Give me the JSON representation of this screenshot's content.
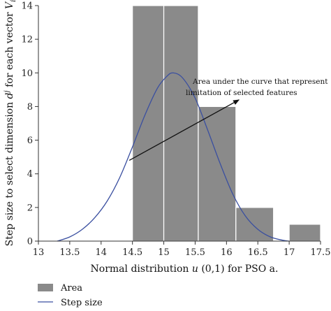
{
  "chart_data": {
    "type": "bar",
    "xlabel": "Normal distribution u (0,1) for PSO a.",
    "ylabel": "Step size to select dimension d^j for each vector V_i",
    "xlim": [
      13,
      17.5
    ],
    "ylim": [
      0,
      14
    ],
    "x_ticks": [
      "13",
      "13.5",
      "14",
      "14.5",
      "15",
      "15.5",
      "16",
      "16.5",
      "17",
      "17.5"
    ],
    "y_ticks": [
      "0",
      "2",
      "4",
      "6",
      "8",
      "10",
      "12",
      "14"
    ],
    "grid": false,
    "bars": {
      "name": "Area",
      "color": "#8a8a8a",
      "items": [
        {
          "x0": 14.5,
          "x1": 15.0,
          "value": 14
        },
        {
          "x0": 15.0,
          "x1": 15.55,
          "value": 14
        },
        {
          "x0": 15.55,
          "x1": 16.15,
          "value": 8
        },
        {
          "x0": 16.15,
          "x1": 16.75,
          "value": 2
        },
        {
          "x0": 17.0,
          "x1": 17.5,
          "value": 1
        }
      ]
    },
    "line": {
      "name": "Step size",
      "color": "#3a4fa0",
      "x": [
        13.3,
        13.5,
        13.7,
        13.9,
        14.1,
        14.3,
        14.5,
        14.7,
        14.9,
        15.05,
        15.15,
        15.3,
        15.5,
        15.7,
        15.9,
        16.1,
        16.3,
        16.5,
        16.7,
        16.9,
        17.0
      ],
      "y": [
        0.0,
        0.25,
        0.7,
        1.4,
        2.4,
        3.8,
        5.6,
        7.5,
        9.1,
        9.8,
        10.0,
        9.7,
        8.5,
        6.6,
        4.6,
        2.8,
        1.5,
        0.7,
        0.25,
        0.05,
        0.0
      ]
    },
    "annotation": {
      "lines": [
        "Area under the curve that represent",
        "limitation of selected features"
      ],
      "arrow_from": [
        14.45,
        4.8
      ],
      "arrow_to": [
        16.2,
        8.4
      ]
    },
    "legend": {
      "placement": "bottom-left",
      "entries": [
        {
          "label": "Area",
          "kind": "patch"
        },
        {
          "label": "Step size",
          "kind": "line"
        }
      ]
    }
  }
}
